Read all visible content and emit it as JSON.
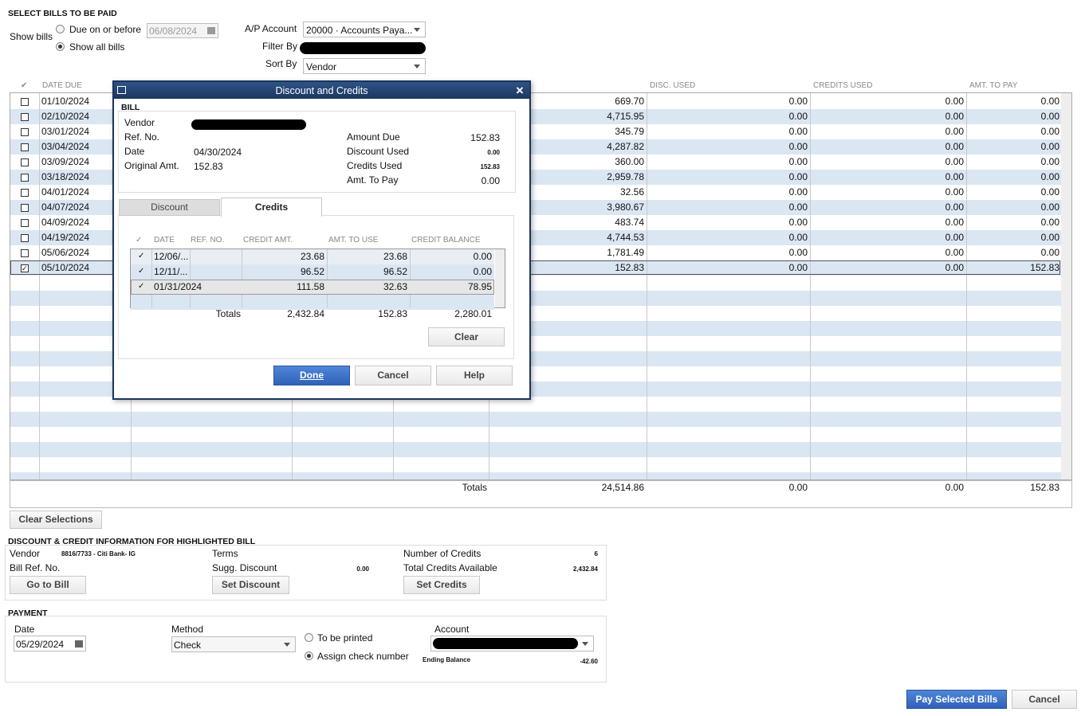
{
  "select_bills": {
    "section_title": "SELECT BILLS TO BE PAID",
    "show_bills_label": "Show bills",
    "due_on_or_before": "Due on or before",
    "due_date": "06/08/2024",
    "show_all_bills": "Show all bills",
    "ap_account_label": "A/P Account",
    "ap_account_value": "20000 · Accounts Paya...",
    "filter_by_label": "Filter By",
    "sort_by_label": "Sort By",
    "sort_by_value": "Vendor"
  },
  "bills_table": {
    "columns": [
      "DATE DUE",
      "DISC. USED",
      "CREDITS USED",
      "AMT. TO PAY"
    ],
    "rows": [
      {
        "date_due": "01/10/2024",
        "amount": "669.70",
        "disc_used": "0.00",
        "credits_used": "0.00",
        "amt_to_pay": "0.00",
        "selected": false
      },
      {
        "date_due": "02/10/2024",
        "amount": "4,715.95",
        "disc_used": "0.00",
        "credits_used": "0.00",
        "amt_to_pay": "0.00",
        "selected": false
      },
      {
        "date_due": "03/01/2024",
        "amount": "345.79",
        "disc_used": "0.00",
        "credits_used": "0.00",
        "amt_to_pay": "0.00",
        "selected": false
      },
      {
        "date_due": "03/04/2024",
        "amount": "4,287.82",
        "disc_used": "0.00",
        "credits_used": "0.00",
        "amt_to_pay": "0.00",
        "selected": false
      },
      {
        "date_due": "03/09/2024",
        "amount": "360.00",
        "disc_used": "0.00",
        "credits_used": "0.00",
        "amt_to_pay": "0.00",
        "selected": false
      },
      {
        "date_due": "03/18/2024",
        "amount": "2,959.78",
        "disc_used": "0.00",
        "credits_used": "0.00",
        "amt_to_pay": "0.00",
        "selected": false
      },
      {
        "date_due": "04/01/2024",
        "amount": "32.56",
        "disc_used": "0.00",
        "credits_used": "0.00",
        "amt_to_pay": "0.00",
        "selected": false
      },
      {
        "date_due": "04/07/2024",
        "amount": "3,980.67",
        "disc_used": "0.00",
        "credits_used": "0.00",
        "amt_to_pay": "0.00",
        "selected": false
      },
      {
        "date_due": "04/09/2024",
        "amount": "483.74",
        "disc_used": "0.00",
        "credits_used": "0.00",
        "amt_to_pay": "0.00",
        "selected": false
      },
      {
        "date_due": "04/19/2024",
        "amount": "4,744.53",
        "disc_used": "0.00",
        "credits_used": "0.00",
        "amt_to_pay": "0.00",
        "selected": false
      },
      {
        "date_due": "05/06/2024",
        "amount": "1,781.49",
        "disc_used": "0.00",
        "credits_used": "0.00",
        "amt_to_pay": "0.00",
        "selected": false
      },
      {
        "date_due": "05/10/2024",
        "amount": "152.83",
        "disc_used": "0.00",
        "credits_used": "0.00",
        "amt_to_pay": "152.83",
        "selected": true
      }
    ],
    "totals_label": "Totals",
    "totals": [
      "24,514.86",
      "0.00",
      "0.00",
      "152.83"
    ],
    "clear_selections": "Clear Selections"
  },
  "highlighted_bill": {
    "section_title": "DISCOUNT & CREDIT INFORMATION FOR HIGHLIGHTED BILL",
    "vendor_label": "Vendor",
    "vendor_value": "8816/7733 - Citi Bank- IG",
    "bill_ref_label": "Bill Ref. No.",
    "terms_label": "Terms",
    "sugg_discount_label": "Sugg. Discount",
    "sugg_discount_value": "0.00",
    "number_of_credits_label": "Number of Credits",
    "number_of_credits_value": "6",
    "total_credits_label": "Total Credits Available",
    "total_credits_value": "2,432.84",
    "go_to_bill": "Go to Bill",
    "set_discount": "Set Discount",
    "set_credits": "Set Credits"
  },
  "payment": {
    "section_title": "PAYMENT",
    "date_label": "Date",
    "date_value": "05/29/2024",
    "method_label": "Method",
    "method_value": "Check",
    "to_be_printed": "To be printed",
    "assign_check_number": "Assign check number",
    "account_label": "Account",
    "ending_balance_label": "Ending Balance",
    "ending_balance_value": "-42.60",
    "pay_selected_bills": "Pay Selected Bills",
    "cancel": "Cancel"
  },
  "dialog": {
    "title": "Discount and Credits",
    "bill_label": "BILL",
    "vendor_label": "Vendor",
    "ref_no_label": "Ref. No.",
    "date_label": "Date",
    "date_value": "04/30/2024",
    "original_amt_label": "Original Amt.",
    "original_amt_value": "152.83",
    "amount_due_label": "Amount Due",
    "amount_due_value": "152.83",
    "discount_used_label": "Discount Used",
    "discount_used_value": "0.00",
    "credits_used_label": "Credits Used",
    "credits_used_value": "152.83",
    "amt_to_pay_label": "Amt. To Pay",
    "amt_to_pay_value": "0.00",
    "tabs": [
      "Discount",
      "Credits"
    ],
    "credits_columns": [
      "✓",
      "DATE",
      "REF. NO.",
      "CREDIT AMT.",
      "AMT. TO USE",
      "CREDIT BALANCE"
    ],
    "credits_rows": [
      {
        "date": "12/06/...",
        "credit_amt": "23.68",
        "amt_to_use": "23.68",
        "credit_balance": "0.00",
        "selected": true
      },
      {
        "date": "12/11/...",
        "credit_amt": "96.52",
        "amt_to_use": "96.52",
        "credit_balance": "0.00",
        "selected": true
      },
      {
        "date": "01/31/2024",
        "credit_amt": "111.58",
        "amt_to_use": "32.63",
        "credit_balance": "78.95",
        "selected": true
      }
    ],
    "totals_label": "Totals",
    "totals": [
      "2,432.84",
      "152.83",
      "2,280.01"
    ],
    "clear": "Clear",
    "done": "Done",
    "cancel": "Cancel",
    "help": "Help"
  }
}
